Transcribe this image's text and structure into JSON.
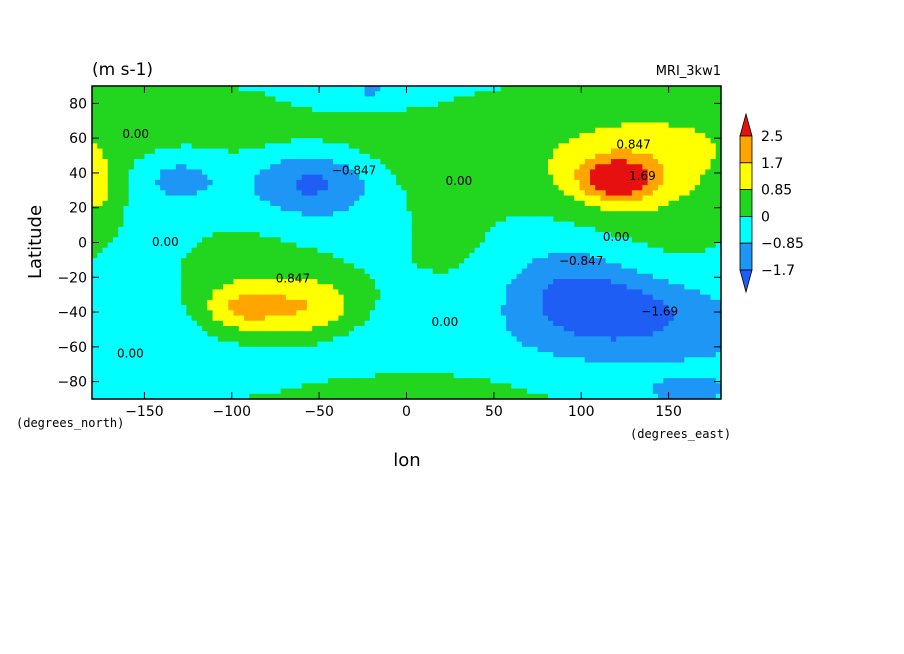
{
  "chart_data": {
    "type": "heatmap",
    "title": "",
    "units_label": "(m s-1)",
    "model_label": "MRI_3kw1",
    "xlabel": "lon",
    "ylabel": "Latitude",
    "x_units_label": "(degrees_east)",
    "y_units_label": "(degrees_north)",
    "xlim": [
      -180,
      180
    ],
    "ylim": [
      -90,
      90
    ],
    "x_ticks": [
      -150,
      -100,
      -50,
      0,
      50,
      100,
      150
    ],
    "y_ticks": [
      -80,
      -60,
      -40,
      -20,
      0,
      20,
      40,
      60,
      80
    ],
    "x_tick_labels": [
      "−150",
      "−100",
      "−50",
      "0",
      "50",
      "100",
      "150"
    ],
    "y_tick_labels": [
      "−80",
      "−60",
      "−40",
      "−20",
      "0",
      "20",
      "40",
      "60",
      "80"
    ],
    "colorbar": {
      "levels": [
        -1.7,
        -0.85,
        0,
        0.85,
        1.7,
        2.5
      ],
      "labels": [
        "−1.7",
        "−0.85",
        "0",
        "0.85",
        "1.7",
        "2.5"
      ],
      "colors": [
        "#1e5ef5",
        "#1e96f5",
        "#00ffff",
        "#22d620",
        "#ffff00",
        "#ffa500",
        "#e61010"
      ]
    },
    "contour_labels": [
      {
        "text": "0.00",
        "lon": -155,
        "lat": 62
      },
      {
        "text": "−0.847",
        "lon": -30,
        "lat": 41
      },
      {
        "text": "0.00",
        "lon": 30,
        "lat": 35
      },
      {
        "text": "0.847",
        "lon": 130,
        "lat": 56
      },
      {
        "text": "1.69",
        "lon": 135,
        "lat": 38
      },
      {
        "text": "0.00",
        "lon": -138,
        "lat": 0
      },
      {
        "text": "0.00",
        "lon": 120,
        "lat": 3
      },
      {
        "text": "−0.847",
        "lon": 100,
        "lat": -11
      },
      {
        "text": "0.847",
        "lon": -65,
        "lat": -21
      },
      {
        "text": "−1.69",
        "lon": 145,
        "lat": -40
      },
      {
        "text": "0.00",
        "lon": 22,
        "lat": -46
      },
      {
        "text": "0.00",
        "lon": -158,
        "lat": -64
      }
    ],
    "features": [
      {
        "value": 2.2,
        "lon": 120,
        "lat": 36,
        "sx": 14,
        "sy": 8
      },
      {
        "value": 1.5,
        "lon": 118,
        "lat": 38,
        "sx": 32,
        "sy": 18
      },
      {
        "value": 1.8,
        "lon": -55,
        "lat": -38,
        "sx": 22,
        "sy": 13
      },
      {
        "value": 1.6,
        "lon": -95,
        "lat": -38,
        "sx": 16,
        "sy": 10
      },
      {
        "value": -1.9,
        "lon": -55,
        "lat": 35,
        "sx": 26,
        "sy": 14
      },
      {
        "value": -1.2,
        "lon": -130,
        "lat": 38,
        "sx": 20,
        "sy": 12
      },
      {
        "value": -2.0,
        "lon": 120,
        "lat": -40,
        "sx": 38,
        "sy": 16
      },
      {
        "value": -1.0,
        "lon": 90,
        "lat": -20,
        "sx": 30,
        "sy": 15
      },
      {
        "value": 1.0,
        "lon": -178,
        "lat": 30,
        "sx": 10,
        "sy": 15
      },
      {
        "value": 0.9,
        "lon": 0,
        "lat": -85,
        "sx": 35,
        "sy": 8
      },
      {
        "value": -1.0,
        "lon": -20,
        "lat": 85,
        "sx": 30,
        "sy": 8
      },
      {
        "value": -1.0,
        "lon": 160,
        "lat": -88,
        "sx": 25,
        "sy": 8
      }
    ]
  }
}
